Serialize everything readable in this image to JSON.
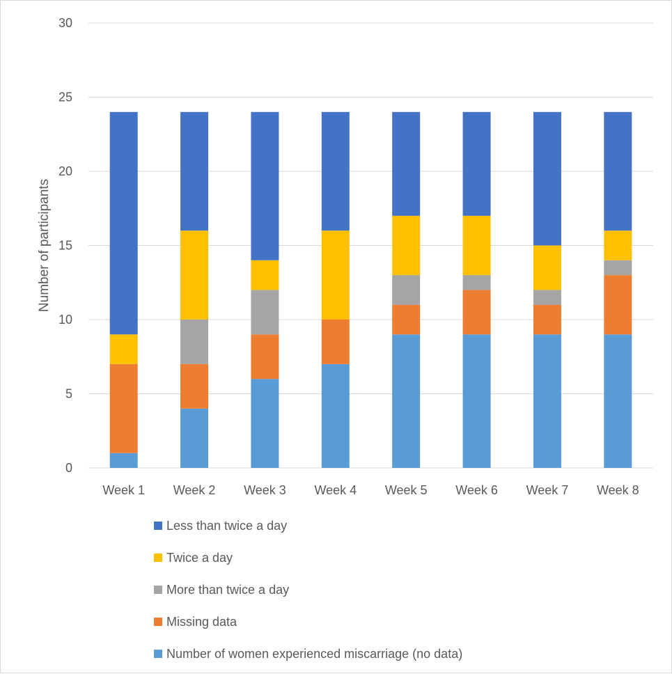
{
  "chart_data": {
    "type": "bar",
    "stacked": true,
    "categories": [
      "Week 1",
      "Week 2",
      "Week 3",
      "Week 4",
      "Week 5",
      "Week 6",
      "Week 7",
      "Week 8"
    ],
    "series": [
      {
        "name": "Number of women experienced miscarriage (no data)",
        "color": "#5B9BD5",
        "values": [
          1,
          4,
          6,
          7,
          9,
          9,
          9,
          9
        ]
      },
      {
        "name": "Missing data",
        "color": "#ED7D31",
        "values": [
          6,
          3,
          3,
          3,
          2,
          3,
          2,
          4
        ]
      },
      {
        "name": "More than twice a day",
        "color": "#A5A5A5",
        "values": [
          0,
          3,
          3,
          0,
          2,
          1,
          1,
          1
        ]
      },
      {
        "name": "Twice a day",
        "color": "#FFC000",
        "values": [
          2,
          6,
          2,
          6,
          4,
          4,
          3,
          2
        ]
      },
      {
        "name": "Less than twice a day",
        "color": "#4472C4",
        "values": [
          15,
          8,
          10,
          8,
          7,
          7,
          9,
          8
        ]
      }
    ],
    "legend_order": [
      "Less than twice a day",
      "Twice a day",
      "More than twice a day",
      "Missing data",
      "Number of women experienced miscarriage (no data)"
    ],
    "xlabel": "",
    "ylabel": "Number of participants",
    "ylim": [
      0,
      30
    ],
    "yticks": [
      0,
      5,
      10,
      15,
      20,
      25,
      30
    ],
    "grid": true,
    "legend_position": "bottom"
  }
}
